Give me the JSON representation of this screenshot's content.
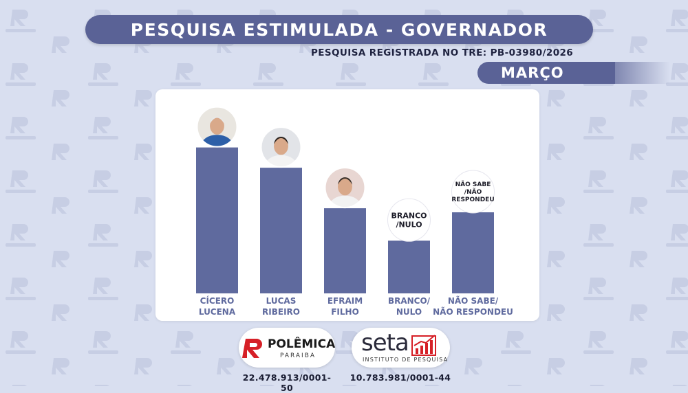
{
  "header": {
    "title": "PESQUISA ESTIMULADA - GOVERNADOR",
    "registro": "PESQUISA REGISTRADA NO TRE: PB-03980/2026",
    "month": "MARÇO"
  },
  "chart_data": {
    "type": "bar",
    "categories": [
      "CÍCERO LUCENA",
      "LUCAS RIBEIRO",
      "EFRAIM FILHO",
      "BRANCO/ NULO",
      "NÃO SABE/ NÃO RESPONDEU"
    ],
    "category_lines": [
      [
        "CÍCERO",
        "LUCENA"
      ],
      [
        "LUCAS",
        "RIBEIRO"
      ],
      [
        "EFRAIM",
        "FILHO"
      ],
      [
        "BRANCO/",
        "NULO"
      ],
      [
        "NÃO SABE/",
        "NÃO RESPONDEU"
      ]
    ],
    "values": [
      36,
      31,
      21,
      13,
      20
    ],
    "markers": [
      {
        "kind": "photo",
        "lines": []
      },
      {
        "kind": "photo",
        "lines": []
      },
      {
        "kind": "photo",
        "lines": []
      },
      {
        "kind": "text",
        "lines": [
          "BRANCO",
          "/NULO"
        ]
      },
      {
        "kind": "text",
        "lines": [
          "NÃO SABE",
          "/NÃO",
          "RESPONDEU"
        ]
      }
    ],
    "ylim": [
      0,
      40
    ],
    "bar_color": "#5f6a9e",
    "grid": false,
    "title": "",
    "xlabel": "",
    "ylabel": ""
  },
  "logos": {
    "polemica": {
      "name": "POLÊMICA",
      "sub": "PARAIBA"
    },
    "seta": {
      "name": "seta",
      "sub": "INSTITUTO DE PESQUISA"
    }
  },
  "footer": {
    "cnpj_polemica": "22.478.913/0001-50",
    "cnpj_seta": "10.783.981/0001-44"
  },
  "colors": {
    "accent": "#5a6296",
    "logo_red": "#d62027",
    "background": "#d9dff0"
  },
  "watermark": "POLÊMICA"
}
